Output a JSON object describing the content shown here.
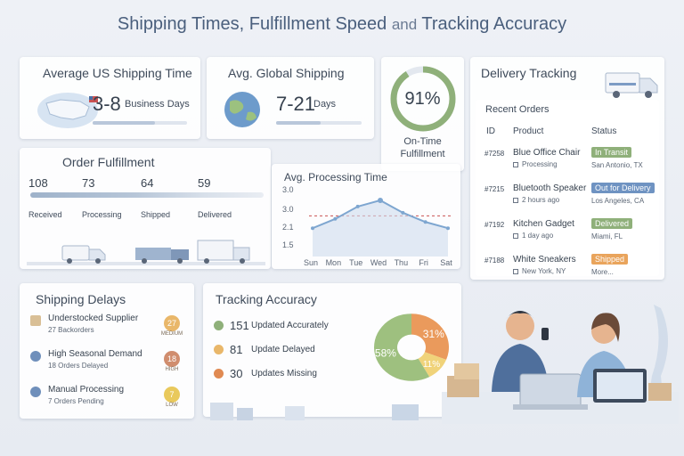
{
  "title": {
    "part1": "Shipping Times, Fulfillment Speed",
    "and": "and",
    "part2": "Tracking Accuracy"
  },
  "us_shipping": {
    "title": "Average US Shipping Time",
    "value": "3-8",
    "unit": "Business Days"
  },
  "global_shipping": {
    "title": "Avg. Global Shipping",
    "value": "7-21",
    "unit": "Days"
  },
  "on_time": {
    "value": "91%",
    "percent": 91,
    "label_1": "On-Time",
    "label_2": "Fulfillment",
    "color": "#8fb07a"
  },
  "delivery_tracking": {
    "title": "Delivery Tracking"
  },
  "recent_orders": {
    "title": "Recent Orders",
    "headers": {
      "id": "ID",
      "product": "Product",
      "status": "Status"
    },
    "rows": [
      {
        "id": "#7258",
        "product": "Blue Office Chair",
        "sub": "Processing",
        "status": "In Transit",
        "location": "San Antonio, TX",
        "color": "#8fb07a"
      },
      {
        "id": "#7215",
        "product": "Bluetooth Speaker",
        "sub": "2 hours ago",
        "status": "Out for Delivery",
        "location": "Los Angeles, CA",
        "color": "#6f93c2"
      },
      {
        "id": "#7192",
        "product": "Kitchen Gadget",
        "sub": "1 day ago",
        "status": "Delivered",
        "location": "Miami, FL",
        "color": "#8fb07a"
      },
      {
        "id": "#7188",
        "product": "White Sneakers",
        "sub": "New York, NY",
        "status": "Shipped",
        "location": "More...",
        "color": "#e9a45c"
      }
    ]
  },
  "order_fulfillment": {
    "title": "Order Fulfillment",
    "stages": [
      {
        "value": "108",
        "label": "Received"
      },
      {
        "value": "73",
        "label": "Processing"
      },
      {
        "value": "64",
        "label": "Shipped"
      },
      {
        "value": "59",
        "label": "Delivered"
      }
    ]
  },
  "processing_time": {
    "title": "Avg. Processing Time",
    "yticks": [
      "3.0",
      "3.0",
      "2.1",
      "1.5"
    ],
    "chart_data": {
      "type": "line",
      "categories": [
        "Sun",
        "Mon",
        "Tue",
        "Wed",
        "Thu",
        "Fri",
        "Sat"
      ],
      "values": [
        2.1,
        2.4,
        2.8,
        3.0,
        2.6,
        2.3,
        2.1
      ],
      "reference": 2.5,
      "ylim": [
        1.3,
        3.2
      ]
    }
  },
  "shipping_delays": {
    "title": "Shipping Delays",
    "items": [
      {
        "title": "Understocked Supplier",
        "sub": "27 Backorders",
        "badge": "27",
        "level": "MEDIUM",
        "color": "#e9b76a"
      },
      {
        "title": "High Seasonal Demand",
        "sub": "18 Orders Delayed",
        "badge": "18",
        "level": "HIGH",
        "color": "#d08d6e"
      },
      {
        "title": "Manual Processing",
        "sub": "7 Orders Pending",
        "badge": "7",
        "level": "LOW",
        "color": "#e9c95c"
      }
    ]
  },
  "tracking_accuracy": {
    "title": "Tracking Accuracy",
    "items": [
      {
        "value": "151",
        "label": "Updated Accurately",
        "icon": "check-icon",
        "color": "#8fb07a"
      },
      {
        "value": "81",
        "label": "Update Delayed",
        "icon": "warning-icon",
        "color": "#e9b76a"
      },
      {
        "value": "30",
        "label": "Updates Missing",
        "icon": "error-icon",
        "color": "#e08a52"
      }
    ],
    "chart_data": {
      "type": "pie",
      "labels": [
        "58%",
        "31%",
        "11%"
      ],
      "values": [
        58,
        31,
        11
      ],
      "colors": [
        "#9ec07f",
        "#ea9a5c",
        "#f0d37a"
      ]
    }
  }
}
